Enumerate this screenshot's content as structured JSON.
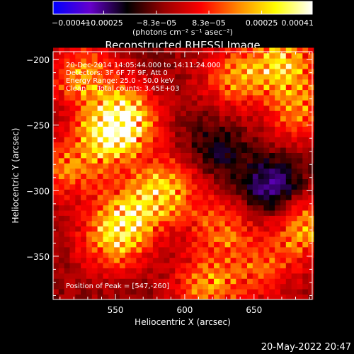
{
  "chart_data": {
    "type": "heatmap",
    "title": "Reconstructed RHESSI Image",
    "xlabel": "Heliocentric X (arcsec)",
    "ylabel": "Heliocentric Y (arcsec)",
    "xlim": [
      505,
      692
    ],
    "ylim": [
      -383,
      -194
    ],
    "x_ticks": [
      550,
      600,
      650
    ],
    "y_ticks": [
      -200,
      -250,
      -300,
      -350
    ],
    "colorbar": {
      "ticks": [
        "-0.00041",
        "-0.00025",
        "-8.3e-05",
        "8.3e-05",
        "0.00025",
        "0.00041"
      ],
      "tick_values": [
        -0.00041,
        -0.00025,
        -8.3e-05,
        8.3e-05,
        0.00025,
        0.00041
      ],
      "range": [
        -0.00041,
        0.00041
      ],
      "unit_label": "(photons cm⁻² s⁻¹ asec⁻²)",
      "colors": [
        "#0000ff",
        "#6600cc",
        "#000000",
        "#990000",
        "#ff0000",
        "#ff8800",
        "#ffff00",
        "#ffffff"
      ]
    },
    "info_lines": [
      "20-Dec-2014 14:05:44.000 to 14:11:24.000",
      "Detectors: 3F 6F 7F 9F, Att 0",
      "Energy Range: 25.0 - 50.0 keV",
      "Clean     Total counts: 3.45E+03"
    ],
    "peak_text": "Position of Peak = [547,-260]",
    "pixel_size_arcsec": 4,
    "notes_blobs": [
      {
        "x": 525,
        "y": -215,
        "v": 0.0003
      },
      {
        "x": 555,
        "y": -245,
        "v": 0.00038
      },
      {
        "x": 545,
        "y": -260,
        "v": 0.00041
      },
      {
        "x": 515,
        "y": -285,
        "v": 0.00025
      },
      {
        "x": 585,
        "y": -300,
        "v": 0.00034
      },
      {
        "x": 560,
        "y": -320,
        "v": 0.00036
      },
      {
        "x": 545,
        "y": -340,
        "v": 0.0003
      },
      {
        "x": 635,
        "y": -215,
        "v": 0.00028
      },
      {
        "x": 670,
        "y": -205,
        "v": 0.00036
      },
      {
        "x": 680,
        "y": -240,
        "v": 0.00026
      },
      {
        "x": 625,
        "y": -330,
        "v": 0.00024
      },
      {
        "x": 685,
        "y": -330,
        "v": 0.00032
      },
      {
        "x": 615,
        "y": -375,
        "v": 0.0003
      },
      {
        "x": 655,
        "y": -360,
        "v": 0.0002
      },
      {
        "x": 660,
        "y": -300,
        "v": -0.00022
      },
      {
        "x": 620,
        "y": -270,
        "v": -0.00012
      }
    ]
  },
  "footer_date": "20-May-2022 20:47"
}
